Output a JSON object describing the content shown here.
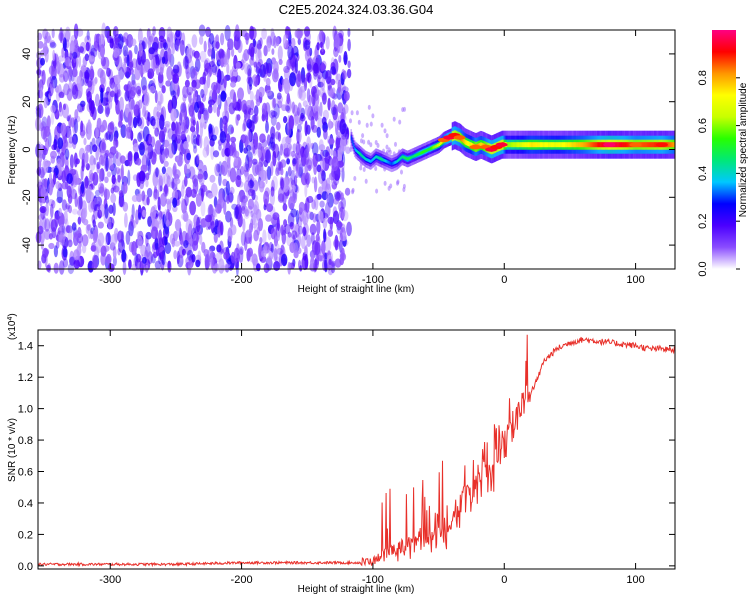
{
  "chart_data": [
    {
      "type": "heatmap",
      "title": "C2E5.2024.324.03.36.G04",
      "xlabel": "Height of straight line (km)",
      "ylabel": "Frequency (Hz)",
      "xlim": [
        -355,
        130
      ],
      "ylim": [
        -50,
        50
      ],
      "x_ticks": [
        -300,
        -200,
        -100,
        0,
        100
      ],
      "x_tick_labels": [
        "-300",
        "-200",
        "-100",
        "0",
        "100"
      ],
      "y_ticks": [
        -40,
        -20,
        0,
        20,
        40
      ],
      "y_tick_labels": [
        "-40",
        "-20",
        "0",
        "20",
        "40"
      ],
      "colorbar": {
        "label": "Normalized spectral amplitude",
        "range": [
          0,
          1
        ],
        "ticks": [
          0.0,
          0.2,
          0.4,
          0.6,
          0.8
        ],
        "tick_labels": [
          "0.0",
          "0.2",
          "0.4",
          "0.6",
          "0.8"
        ],
        "colors": [
          "#ffffff",
          "#8a4dff",
          "#4b00ff",
          "#0000ff",
          "#00c8ff",
          "#00e878",
          "#28ff00",
          "#c8ff00",
          "#ffff00",
          "#ff9600",
          "#ff0000",
          "#ff0082"
        ]
      },
      "noise_region_x": [
        -355,
        -118
      ],
      "track": {
        "x": [
          -117,
          -114,
          -110,
          -106,
          -102,
          -98,
          -94,
          -90,
          -86,
          -82,
          -78,
          -74,
          -70,
          -66,
          -62,
          -58,
          -54,
          -50,
          -46,
          -42,
          -38,
          -34,
          -30,
          -26,
          -22,
          -18,
          -14,
          -10,
          -6,
          -2,
          2,
          10,
          20,
          40,
          60,
          80,
          100,
          120,
          130
        ],
        "y": [
          5,
          0,
          -2,
          -4,
          -5,
          -3,
          -4,
          -5,
          -6,
          -5,
          -3,
          -4,
          -3,
          -2,
          -1,
          0,
          1,
          2,
          4,
          5,
          6,
          5,
          3,
          2,
          1,
          2,
          1,
          0,
          1,
          2,
          2,
          2,
          2,
          2,
          2,
          2,
          2,
          2,
          2
        ],
        "amplitude": [
          0.3,
          0.35,
          0.45,
          0.4,
          0.35,
          0.4,
          0.45,
          0.35,
          0.3,
          0.4,
          0.45,
          0.5,
          0.45,
          0.5,
          0.55,
          0.5,
          0.6,
          0.65,
          0.85,
          0.95,
          0.9,
          0.85,
          0.75,
          0.7,
          0.85,
          0.75,
          0.85,
          0.95,
          0.9,
          0.95,
          0.6,
          0.65,
          0.75,
          0.7,
          0.8,
          0.98,
          0.85,
          0.9,
          0.8
        ]
      }
    },
    {
      "type": "line",
      "title": "",
      "xlabel": "Height of straight line (km)",
      "ylabel": "SNR (10 * v/v)",
      "y_multiplier": "(x10",
      "y_multiplier_exp": "4",
      "y_multiplier_close": ")",
      "xlim": [
        -355,
        130
      ],
      "ylim": [
        -0.02,
        1.5
      ],
      "x_ticks": [
        -300,
        -200,
        -100,
        0,
        100
      ],
      "x_tick_labels": [
        "-300",
        "-200",
        "-100",
        "0",
        "100"
      ],
      "y_ticks": [
        0.0,
        0.2,
        0.4,
        0.6,
        0.8,
        1.0,
        1.2,
        1.4
      ],
      "y_tick_labels": [
        "0.0",
        "0.2",
        "0.4",
        "0.6",
        "0.8",
        "1.0",
        "1.2",
        "1.4"
      ],
      "line_color": "#e8302a",
      "series": [
        {
          "x": [
            -355,
            -300,
            -250,
            -200,
            -160,
            -130,
            -110,
            -100,
            -95,
            -90,
            -85,
            -80,
            -75,
            -70,
            -65,
            -60,
            -55,
            -50,
            -45,
            -40,
            -35,
            -30,
            -25,
            -20,
            -15,
            -10,
            -5,
            0,
            5,
            10,
            15,
            20,
            25,
            30,
            40,
            50,
            60,
            70,
            80,
            90,
            100,
            110,
            120,
            130
          ],
          "y": [
            0.01,
            0.01,
            0.01,
            0.02,
            0.02,
            0.02,
            0.02,
            0.03,
            0.06,
            0.08,
            0.1,
            0.1,
            0.14,
            0.12,
            0.18,
            0.16,
            0.2,
            0.25,
            0.22,
            0.3,
            0.35,
            0.45,
            0.5,
            0.55,
            0.6,
            0.65,
            0.75,
            0.8,
            0.85,
            0.95,
            1.05,
            1.1,
            1.18,
            1.3,
            1.38,
            1.42,
            1.44,
            1.43,
            1.42,
            1.41,
            1.4,
            1.38,
            1.38,
            1.37
          ]
        }
      ]
    }
  ]
}
